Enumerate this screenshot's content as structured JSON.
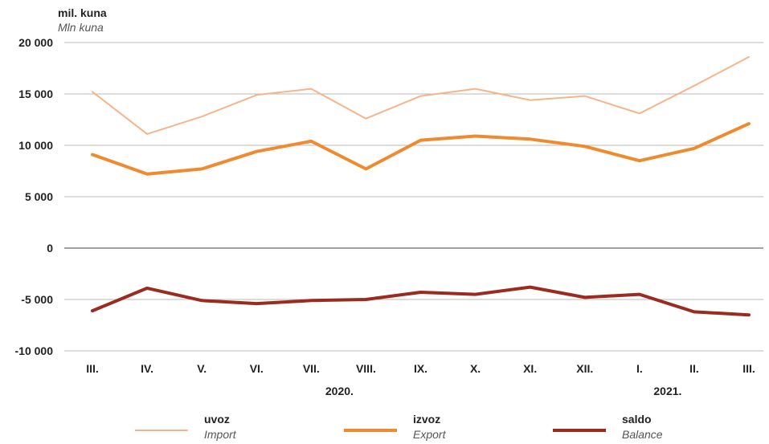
{
  "chart_data": {
    "type": "line",
    "unit_label": "mil. kuna",
    "unit_label_en": "Mln kuna",
    "categories": [
      "III.",
      "IV.",
      "V.",
      "VI.",
      "VII.",
      "VIII.",
      "IX.",
      "X.",
      "XI.",
      "XII.",
      "I.",
      "II.",
      "III."
    ],
    "year_labels": [
      {
        "label": "2020.",
        "category_index": 5
      },
      {
        "label": "2021.",
        "category_index": 11
      }
    ],
    "ylim": [
      -10000,
      20000
    ],
    "yticks": [
      {
        "value": 20000,
        "label": "20 000"
      },
      {
        "value": 15000,
        "label": "15 000"
      },
      {
        "value": 10000,
        "label": "10 000"
      },
      {
        "value": 5000,
        "label": "5 000"
      },
      {
        "value": 0,
        "label": "0"
      },
      {
        "value": -5000,
        "label": "-5 000"
      },
      {
        "value": -10000,
        "label": "-10 000"
      }
    ],
    "grid": true,
    "legend_position": "bottom",
    "series": [
      {
        "name": "uvoz",
        "name_en": "Import",
        "color": "#f5b48a",
        "values": [
          15200,
          11100,
          12800,
          14900,
          15500,
          12600,
          14800,
          15500,
          14400,
          14800,
          13100,
          15800,
          18600
        ]
      },
      {
        "name": "izvoz",
        "name_en": "Export",
        "color": "#ef8a2e",
        "values": [
          9100,
          7200,
          7700,
          9400,
          10400,
          7700,
          10500,
          10900,
          10600,
          9900,
          8500,
          9700,
          12100
        ]
      },
      {
        "name": "saldo",
        "name_en": "Balance",
        "color": "#9b2a1f",
        "values": [
          -6100,
          -3900,
          -5100,
          -5400,
          -5100,
          -5000,
          -4300,
          -4500,
          -3800,
          -4800,
          -4500,
          -6200,
          -6500
        ]
      }
    ]
  }
}
